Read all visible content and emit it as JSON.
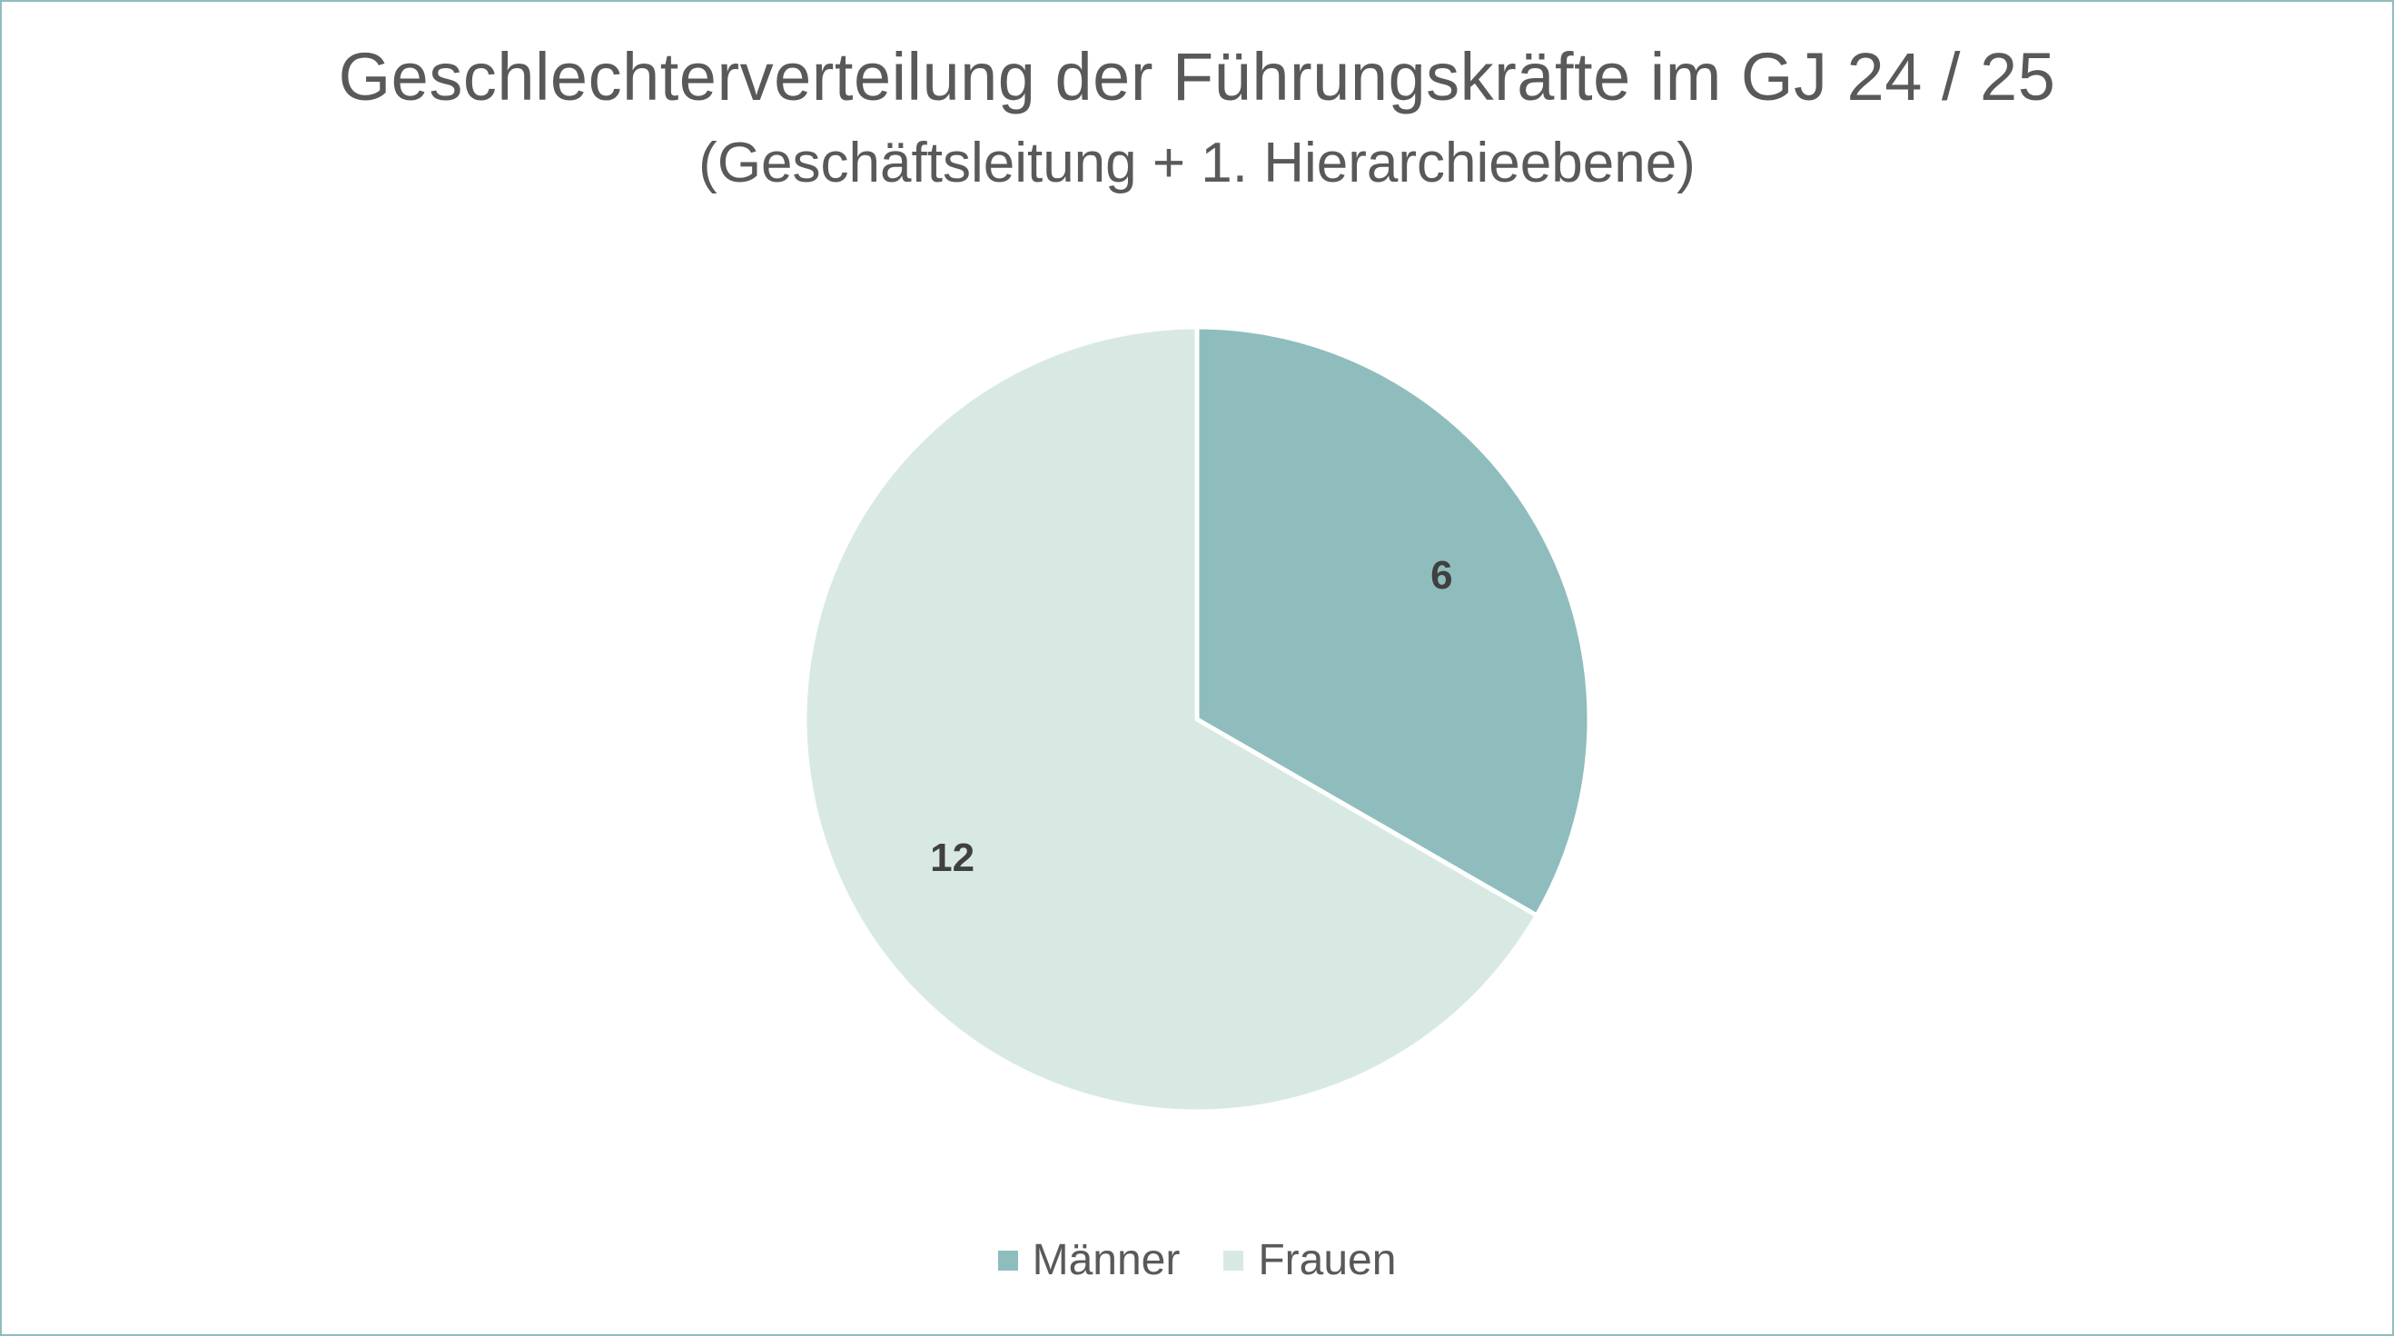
{
  "chart_data": {
    "type": "pie",
    "title": "Geschlechterverteilung der Führungskräfte im GJ 24 / 25",
    "subtitle": "(Geschäftsleitung + 1. Hierarchieebene)",
    "categories": [
      "Männer",
      "Frauen"
    ],
    "values": [
      6,
      12
    ],
    "data_labels": [
      "6",
      "12"
    ],
    "colors": [
      "#8fbdbd",
      "#d8e9e4"
    ],
    "legend_position": "bottom"
  }
}
